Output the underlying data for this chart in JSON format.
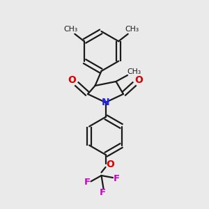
{
  "background_color": "#eaeaea",
  "bond_color": "#1a1a1a",
  "N_color": "#2020ff",
  "O_color": "#dd0000",
  "F_color": "#cc00cc",
  "line_width": 1.6,
  "dbo": 0.055,
  "figsize": [
    3.0,
    3.0
  ],
  "dpi": 100,
  "xlim": [
    0,
    10
  ],
  "ylim": [
    0,
    10
  ]
}
